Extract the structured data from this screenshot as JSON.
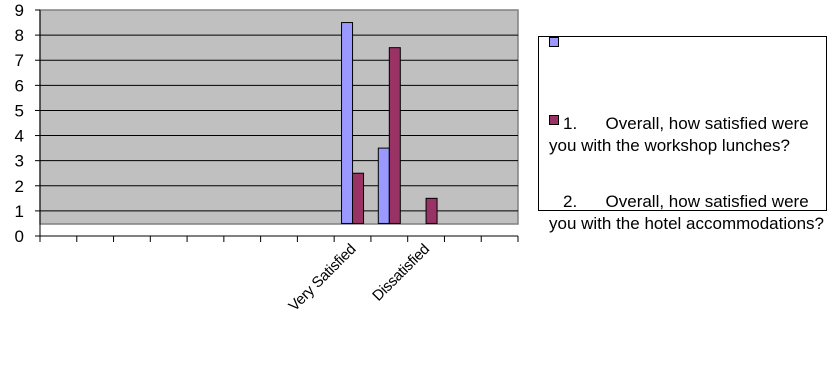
{
  "chart_data": {
    "type": "bar",
    "categories": [
      "",
      "",
      "",
      "",
      "",
      "",
      "",
      "",
      "Very Satisfied",
      "",
      "Dissatisfied",
      "",
      ""
    ],
    "series": [
      {
        "name": "1.      Overall, how satisfied were you with the workshop lunches?",
        "color": "#9999ff",
        "values": [
          0,
          0,
          0,
          0,
          0,
          0,
          0,
          0,
          8,
          3,
          0,
          0,
          0
        ]
      },
      {
        "name": "2.      Overall, how satisfied were you with the hotel accommodations?",
        "color": "#993366",
        "values": [
          0,
          0,
          0,
          0,
          0,
          0,
          0,
          0,
          2,
          7,
          1,
          0,
          0
        ]
      }
    ],
    "ylim": [
      0,
      9
    ],
    "yticks": [
      "0",
      "1",
      "2",
      "3",
      "4",
      "5",
      "6",
      "7",
      "8",
      "9"
    ],
    "grid": true,
    "plot_background": "#c0c0c0",
    "legend_position": "right"
  }
}
